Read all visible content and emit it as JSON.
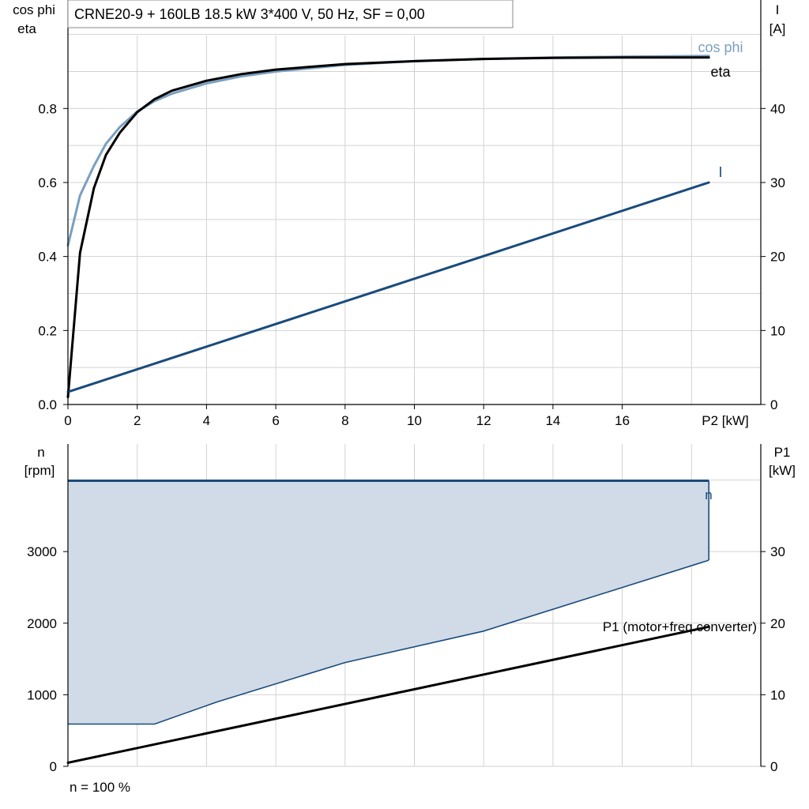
{
  "chart_data": [
    {
      "type": "line",
      "title": "CRNE20-9 + 160LB   18.5 kW   3*400 V, 50 Hz, SF = 0,00",
      "left_axis_label": [
        "cos phi",
        "eta"
      ],
      "right_axis_label": [
        "I",
        "[A]"
      ],
      "xlabel": "P2 [kW]",
      "xlim": [
        0,
        18.5
      ],
      "xticks": [
        0,
        2,
        4,
        6,
        8,
        10,
        12,
        14,
        16
      ],
      "ylim_left": [
        0,
        1.0
      ],
      "yticks_left": [
        "0.0",
        "0.2",
        "0.4",
        "0.6",
        "0.8"
      ],
      "ylim_right": [
        0,
        50
      ],
      "yticks_right": [
        "0",
        "10",
        "20",
        "30",
        "40"
      ],
      "grid": true,
      "series": [
        {
          "name": "cos phi",
          "axis": "left",
          "color": "#7a9fc0",
          "x": [
            0,
            0.35,
            0.75,
            1.1,
            1.5,
            2.0,
            2.5,
            3,
            4,
            5,
            6,
            8,
            10,
            12,
            14,
            16,
            18.5
          ],
          "y": [
            0.43,
            0.565,
            0.645,
            0.705,
            0.75,
            0.792,
            0.82,
            0.84,
            0.868,
            0.887,
            0.9,
            0.918,
            0.928,
            0.934,
            0.938,
            0.94,
            0.942
          ]
        },
        {
          "name": "eta",
          "axis": "left",
          "color": "#000000",
          "x": [
            0,
            0.35,
            0.75,
            1.1,
            1.5,
            2.0,
            2.5,
            3,
            4,
            5,
            6,
            8,
            10,
            12,
            14,
            16,
            18.5
          ],
          "y": [
            0.02,
            0.41,
            0.585,
            0.675,
            0.735,
            0.79,
            0.825,
            0.848,
            0.875,
            0.893,
            0.905,
            0.92,
            0.928,
            0.934,
            0.937,
            0.938,
            0.938
          ]
        },
        {
          "name": "I",
          "axis": "right",
          "color": "#1a4b7c",
          "x": [
            0,
            18.5
          ],
          "y": [
            1.7,
            30.0
          ]
        }
      ]
    },
    {
      "type": "area",
      "left_axis_label": [
        "n",
        "[rpm]"
      ],
      "right_axis_label": [
        "P1",
        "[kW]"
      ],
      "xlim": [
        0,
        18.5
      ],
      "ylim_left": [
        0,
        4000
      ],
      "yticks_left": [
        "0",
        "1000",
        "2000",
        "3000"
      ],
      "ylim_right": [
        0,
        40
      ],
      "yticks_right": [
        "0",
        "10",
        "20",
        "30"
      ],
      "grid": true,
      "footer_note": "n = 100 %",
      "series": [
        {
          "name": "n",
          "axis": "left",
          "color": "#1a4b7c",
          "x": [
            0,
            18.5
          ],
          "y": [
            3990,
            3990
          ]
        },
        {
          "name": "lower speed limit",
          "axis": "left",
          "color": "#1a4b7c",
          "x": [
            0,
            2.5,
            4.3,
            8,
            12,
            18.5
          ],
          "y": [
            590,
            590,
            900,
            1450,
            1890,
            2880
          ]
        },
        {
          "name": "P1 (motor+freq.converter)",
          "axis": "right",
          "color": "#000000",
          "x": [
            0,
            18.5
          ],
          "y": [
            0.5,
            19.5
          ]
        }
      ],
      "fill_color": "#d0dbe7"
    }
  ]
}
